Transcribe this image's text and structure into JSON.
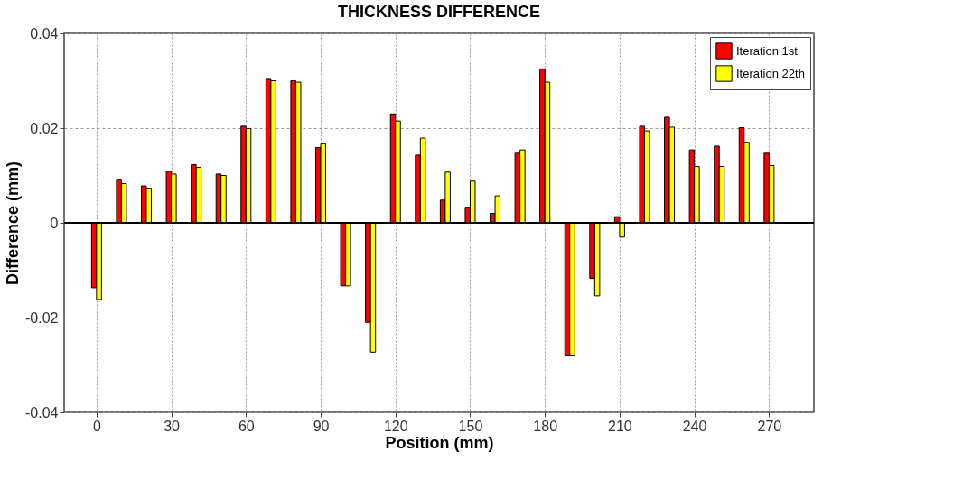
{
  "chart_data": {
    "type": "bar",
    "title": "THICKNESS DIFFERENCE",
    "xlabel": "Position (mm)",
    "ylabel": "Difference (mm)",
    "x": [
      0,
      10,
      20,
      30,
      40,
      50,
      60,
      70,
      80,
      90,
      100,
      110,
      120,
      130,
      140,
      150,
      160,
      170,
      180,
      190,
      200,
      210,
      220,
      230,
      240,
      250,
      260,
      270
    ],
    "series": [
      {
        "name": "Iteration 1st",
        "color": "#ff0000",
        "values": [
          -0.0137,
          0.0092,
          0.0078,
          0.0109,
          0.0123,
          0.0103,
          0.0204,
          0.0303,
          0.03,
          0.0159,
          -0.0133,
          -0.021,
          0.023,
          0.0143,
          0.0048,
          0.0033,
          0.002,
          0.0147,
          0.0325,
          -0.0281,
          -0.0117,
          0.0013,
          0.0204,
          0.0223,
          0.0154,
          0.0162,
          0.0201,
          0.0147
        ]
      },
      {
        "name": "Iteration 22th",
        "color": "#ffff00",
        "values": [
          -0.0162,
          0.0083,
          0.0073,
          0.0103,
          0.0117,
          0.01,
          0.0199,
          0.03,
          0.0297,
          0.0167,
          -0.0133,
          -0.0273,
          0.0215,
          0.0179,
          0.0107,
          0.0088,
          0.0057,
          0.0154,
          0.0297,
          -0.0281,
          -0.0154,
          -0.003,
          0.0194,
          0.0202,
          0.0119,
          0.0119,
          0.017,
          0.0121
        ]
      }
    ],
    "xlim": [
      -13,
      288
    ],
    "xticks": [
      0,
      30,
      60,
      90,
      120,
      150,
      180,
      210,
      240,
      270
    ],
    "ylim": [
      -0.04,
      0.04
    ],
    "yticks": [
      -0.04,
      -0.02,
      0,
      0.02,
      0.04
    ],
    "grid": true,
    "legend": "top right"
  }
}
